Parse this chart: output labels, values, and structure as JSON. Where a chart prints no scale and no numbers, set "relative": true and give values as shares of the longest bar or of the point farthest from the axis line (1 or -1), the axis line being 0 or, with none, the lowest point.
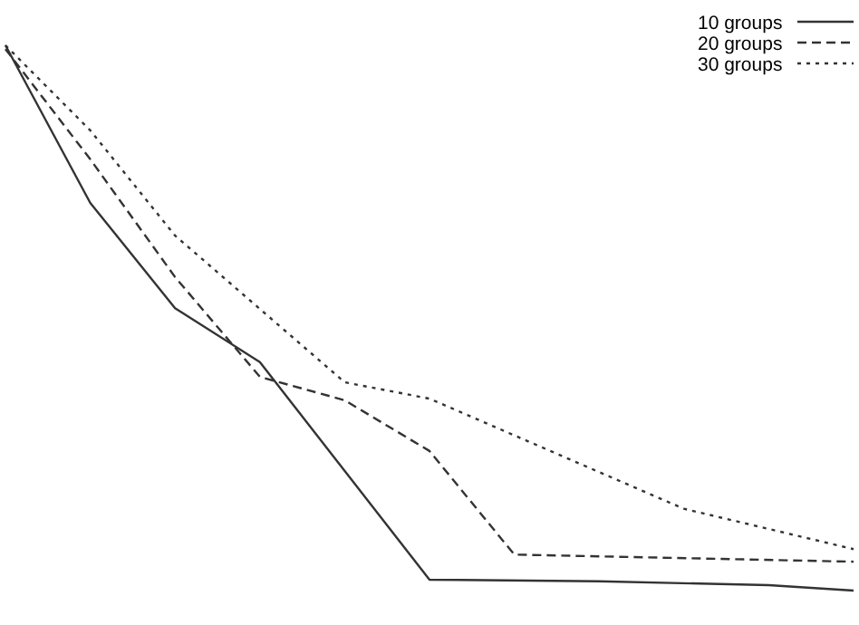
{
  "chart_data": {
    "type": "line",
    "relative": true,
    "legend": "top right",
    "categories": [
      null,
      null,
      null,
      null,
      null,
      null,
      null,
      null,
      null,
      null,
      null
    ],
    "series": [
      {
        "name": "10 groups",
        "color": "#333333",
        "line_style": "solid",
        "values": [
          1.0,
          0.711,
          0.518,
          0.419,
          null,
          0.02,
          null,
          0.017,
          null,
          0.01,
          0
        ]
      },
      {
        "name": "20 groups",
        "color": "#333333",
        "line_style": "dashed",
        "values": [
          0.993,
          0.791,
          0.575,
          0.392,
          0.349,
          0.256,
          0.066,
          null,
          null,
          null,
          0.053
        ]
      },
      {
        "name": "30 groups",
        "color": "#333333",
        "line_style": "dotted",
        "values": [
          1.0,
          0.844,
          0.651,
          null,
          0.382,
          0.352,
          null,
          null,
          0.15,
          null,
          0.076
        ]
      }
    ]
  }
}
